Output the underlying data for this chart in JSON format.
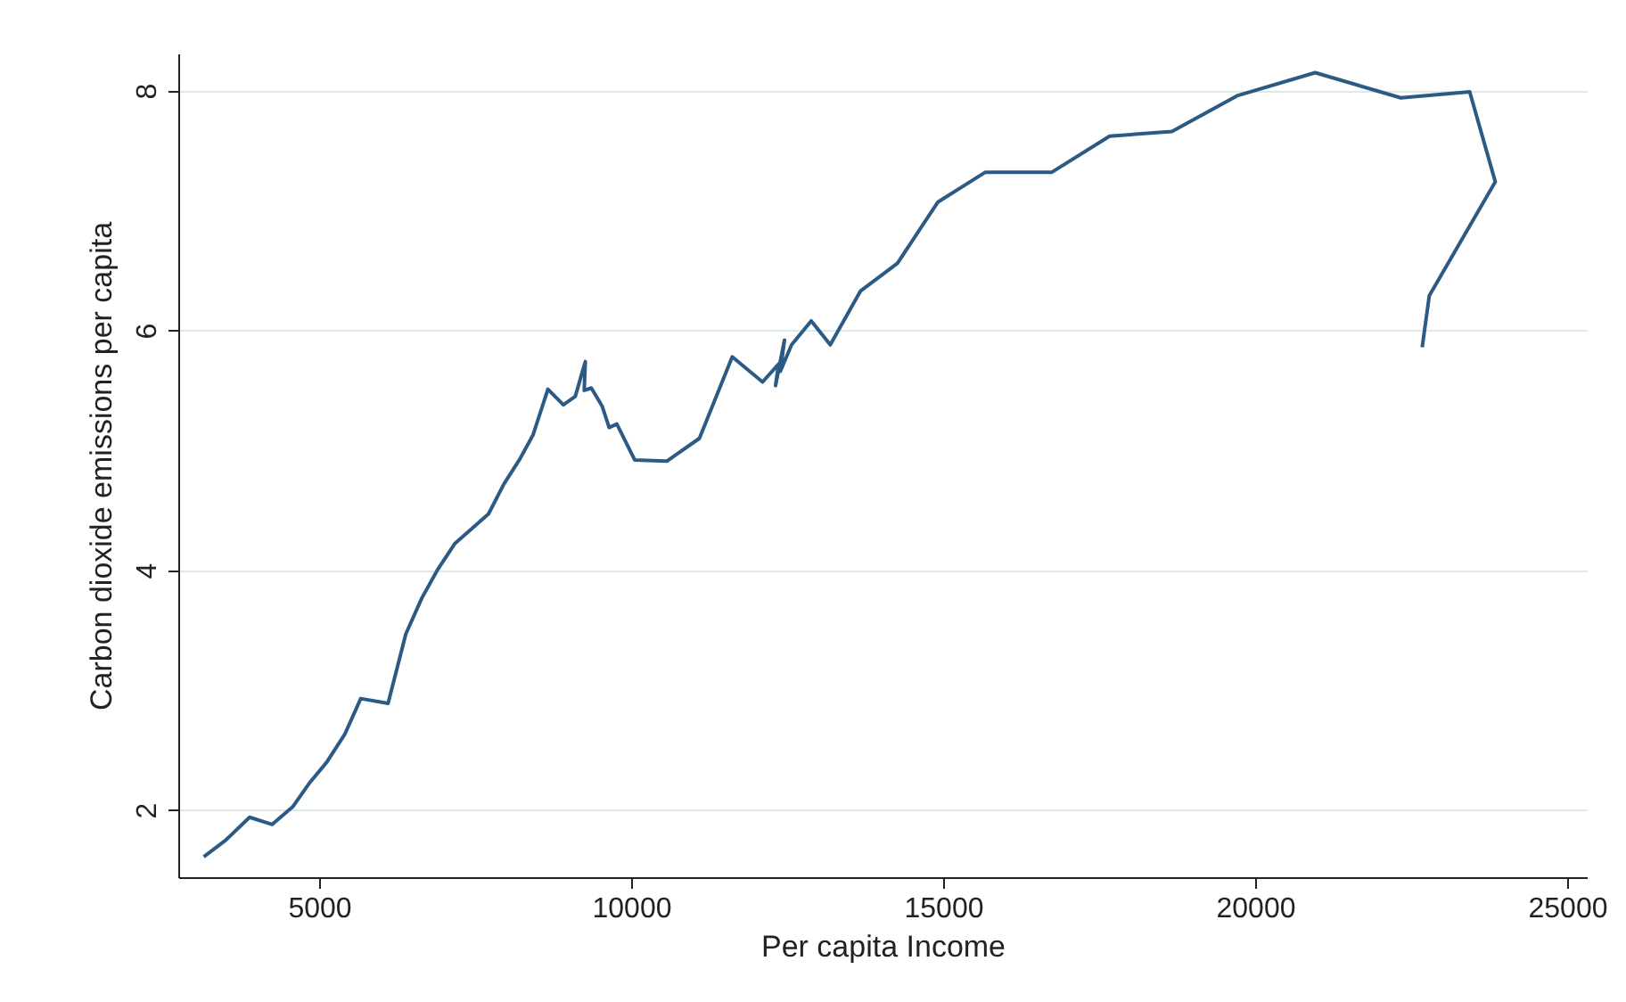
{
  "chart_data": {
    "type": "line",
    "xlabel": "Per capita Income",
    "ylabel": "Carbon dioxide emissions per capita",
    "x": [
      3151,
      3505,
      3886,
      4248,
      4581,
      4837,
      5123,
      5409,
      5667,
      6105,
      6390,
      6648,
      6905,
      7171,
      7714,
      7962,
      8219,
      8429,
      8666,
      8914,
      9105,
      9266,
      9248,
      9362,
      9534,
      9648,
      9771,
      10057,
      10571,
      11094,
      11620,
      12106,
      12363,
      12314,
      12457,
      12391,
      12571,
      12886,
      13191,
      13677,
      14267,
      14914,
      15677,
      16743,
      17667,
      18666,
      19723,
      20962,
      22334,
      23438,
      23848,
      22790,
      22677
    ],
    "series": [
      {
        "color": "#2b5b84",
        "values": [
          1.61,
          1.75,
          1.94,
          1.88,
          2.03,
          2.22,
          2.4,
          2.63,
          2.93,
          2.89,
          3.47,
          3.77,
          4.01,
          4.22,
          4.47,
          4.72,
          4.93,
          5.13,
          5.51,
          5.38,
          5.45,
          5.74,
          5.5,
          5.52,
          5.37,
          5.19,
          5.22,
          4.92,
          4.91,
          5.1,
          5.78,
          5.57,
          5.72,
          5.54,
          5.92,
          5.66,
          5.88,
          6.08,
          5.88,
          6.33,
          6.56,
          7.07,
          7.32,
          7.32,
          7.62,
          7.66,
          7.96,
          8.15,
          7.94,
          7.99,
          7.24,
          6.29,
          5.86
        ]
      }
    ],
    "xlim": [
      2743,
      25314
    ],
    "ylim": [
      1.44,
      8.31
    ],
    "xticks": [
      5000,
      10000,
      15000,
      20000,
      25000
    ],
    "yticks": [
      2,
      4,
      6,
      8
    ],
    "grid": "y",
    "marker": "none",
    "line_style": "solid"
  }
}
